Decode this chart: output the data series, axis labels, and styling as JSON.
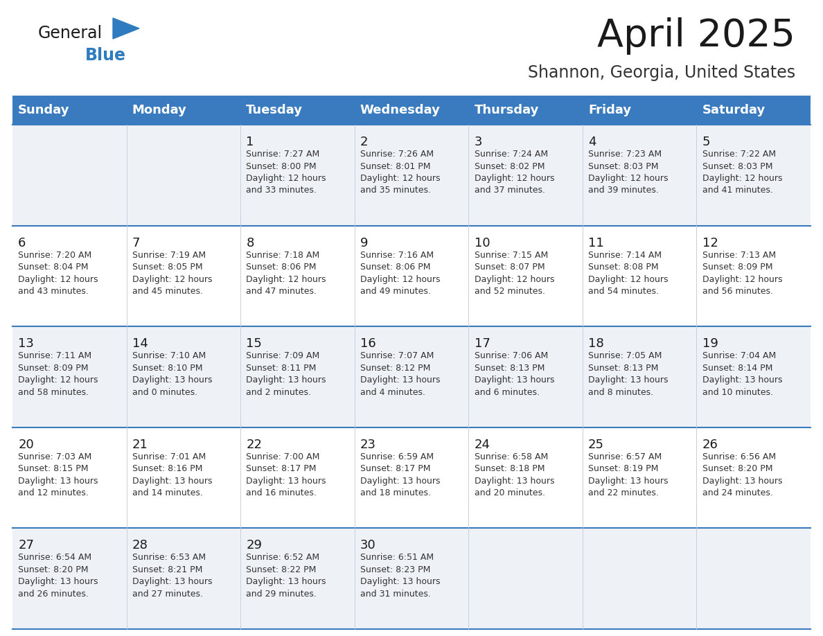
{
  "title": "April 2025",
  "subtitle": "Shannon, Georgia, United States",
  "days_of_week": [
    "Sunday",
    "Monday",
    "Tuesday",
    "Wednesday",
    "Thursday",
    "Friday",
    "Saturday"
  ],
  "header_bg": "#3a7bbf",
  "header_text": "#ffffff",
  "row_bg_even": "#eef2f7",
  "row_bg_odd": "#ffffff",
  "day_num_color": "#1a1a1a",
  "cell_text_color": "#333333",
  "divider_color": "#3a7bbf",
  "title_color": "#1a1a1a",
  "subtitle_color": "#333333",
  "logo_general_color": "#1a1a1a",
  "logo_blue_color": "#2e7bbf",
  "logo_triangle_color": "#2e7bbf",
  "weeks": [
    {
      "days": [
        {
          "num": "",
          "info": ""
        },
        {
          "num": "",
          "info": ""
        },
        {
          "num": "1",
          "info": "Sunrise: 7:27 AM\nSunset: 8:00 PM\nDaylight: 12 hours\nand 33 minutes."
        },
        {
          "num": "2",
          "info": "Sunrise: 7:26 AM\nSunset: 8:01 PM\nDaylight: 12 hours\nand 35 minutes."
        },
        {
          "num": "3",
          "info": "Sunrise: 7:24 AM\nSunset: 8:02 PM\nDaylight: 12 hours\nand 37 minutes."
        },
        {
          "num": "4",
          "info": "Sunrise: 7:23 AM\nSunset: 8:03 PM\nDaylight: 12 hours\nand 39 minutes."
        },
        {
          "num": "5",
          "info": "Sunrise: 7:22 AM\nSunset: 8:03 PM\nDaylight: 12 hours\nand 41 minutes."
        }
      ]
    },
    {
      "days": [
        {
          "num": "6",
          "info": "Sunrise: 7:20 AM\nSunset: 8:04 PM\nDaylight: 12 hours\nand 43 minutes."
        },
        {
          "num": "7",
          "info": "Sunrise: 7:19 AM\nSunset: 8:05 PM\nDaylight: 12 hours\nand 45 minutes."
        },
        {
          "num": "8",
          "info": "Sunrise: 7:18 AM\nSunset: 8:06 PM\nDaylight: 12 hours\nand 47 minutes."
        },
        {
          "num": "9",
          "info": "Sunrise: 7:16 AM\nSunset: 8:06 PM\nDaylight: 12 hours\nand 49 minutes."
        },
        {
          "num": "10",
          "info": "Sunrise: 7:15 AM\nSunset: 8:07 PM\nDaylight: 12 hours\nand 52 minutes."
        },
        {
          "num": "11",
          "info": "Sunrise: 7:14 AM\nSunset: 8:08 PM\nDaylight: 12 hours\nand 54 minutes."
        },
        {
          "num": "12",
          "info": "Sunrise: 7:13 AM\nSunset: 8:09 PM\nDaylight: 12 hours\nand 56 minutes."
        }
      ]
    },
    {
      "days": [
        {
          "num": "13",
          "info": "Sunrise: 7:11 AM\nSunset: 8:09 PM\nDaylight: 12 hours\nand 58 minutes."
        },
        {
          "num": "14",
          "info": "Sunrise: 7:10 AM\nSunset: 8:10 PM\nDaylight: 13 hours\nand 0 minutes."
        },
        {
          "num": "15",
          "info": "Sunrise: 7:09 AM\nSunset: 8:11 PM\nDaylight: 13 hours\nand 2 minutes."
        },
        {
          "num": "16",
          "info": "Sunrise: 7:07 AM\nSunset: 8:12 PM\nDaylight: 13 hours\nand 4 minutes."
        },
        {
          "num": "17",
          "info": "Sunrise: 7:06 AM\nSunset: 8:13 PM\nDaylight: 13 hours\nand 6 minutes."
        },
        {
          "num": "18",
          "info": "Sunrise: 7:05 AM\nSunset: 8:13 PM\nDaylight: 13 hours\nand 8 minutes."
        },
        {
          "num": "19",
          "info": "Sunrise: 7:04 AM\nSunset: 8:14 PM\nDaylight: 13 hours\nand 10 minutes."
        }
      ]
    },
    {
      "days": [
        {
          "num": "20",
          "info": "Sunrise: 7:03 AM\nSunset: 8:15 PM\nDaylight: 13 hours\nand 12 minutes."
        },
        {
          "num": "21",
          "info": "Sunrise: 7:01 AM\nSunset: 8:16 PM\nDaylight: 13 hours\nand 14 minutes."
        },
        {
          "num": "22",
          "info": "Sunrise: 7:00 AM\nSunset: 8:17 PM\nDaylight: 13 hours\nand 16 minutes."
        },
        {
          "num": "23",
          "info": "Sunrise: 6:59 AM\nSunset: 8:17 PM\nDaylight: 13 hours\nand 18 minutes."
        },
        {
          "num": "24",
          "info": "Sunrise: 6:58 AM\nSunset: 8:18 PM\nDaylight: 13 hours\nand 20 minutes."
        },
        {
          "num": "25",
          "info": "Sunrise: 6:57 AM\nSunset: 8:19 PM\nDaylight: 13 hours\nand 22 minutes."
        },
        {
          "num": "26",
          "info": "Sunrise: 6:56 AM\nSunset: 8:20 PM\nDaylight: 13 hours\nand 24 minutes."
        }
      ]
    },
    {
      "days": [
        {
          "num": "27",
          "info": "Sunrise: 6:54 AM\nSunset: 8:20 PM\nDaylight: 13 hours\nand 26 minutes."
        },
        {
          "num": "28",
          "info": "Sunrise: 6:53 AM\nSunset: 8:21 PM\nDaylight: 13 hours\nand 27 minutes."
        },
        {
          "num": "29",
          "info": "Sunrise: 6:52 AM\nSunset: 8:22 PM\nDaylight: 13 hours\nand 29 minutes."
        },
        {
          "num": "30",
          "info": "Sunrise: 6:51 AM\nSunset: 8:23 PM\nDaylight: 13 hours\nand 31 minutes."
        },
        {
          "num": "",
          "info": ""
        },
        {
          "num": "",
          "info": ""
        },
        {
          "num": "",
          "info": ""
        }
      ]
    }
  ]
}
